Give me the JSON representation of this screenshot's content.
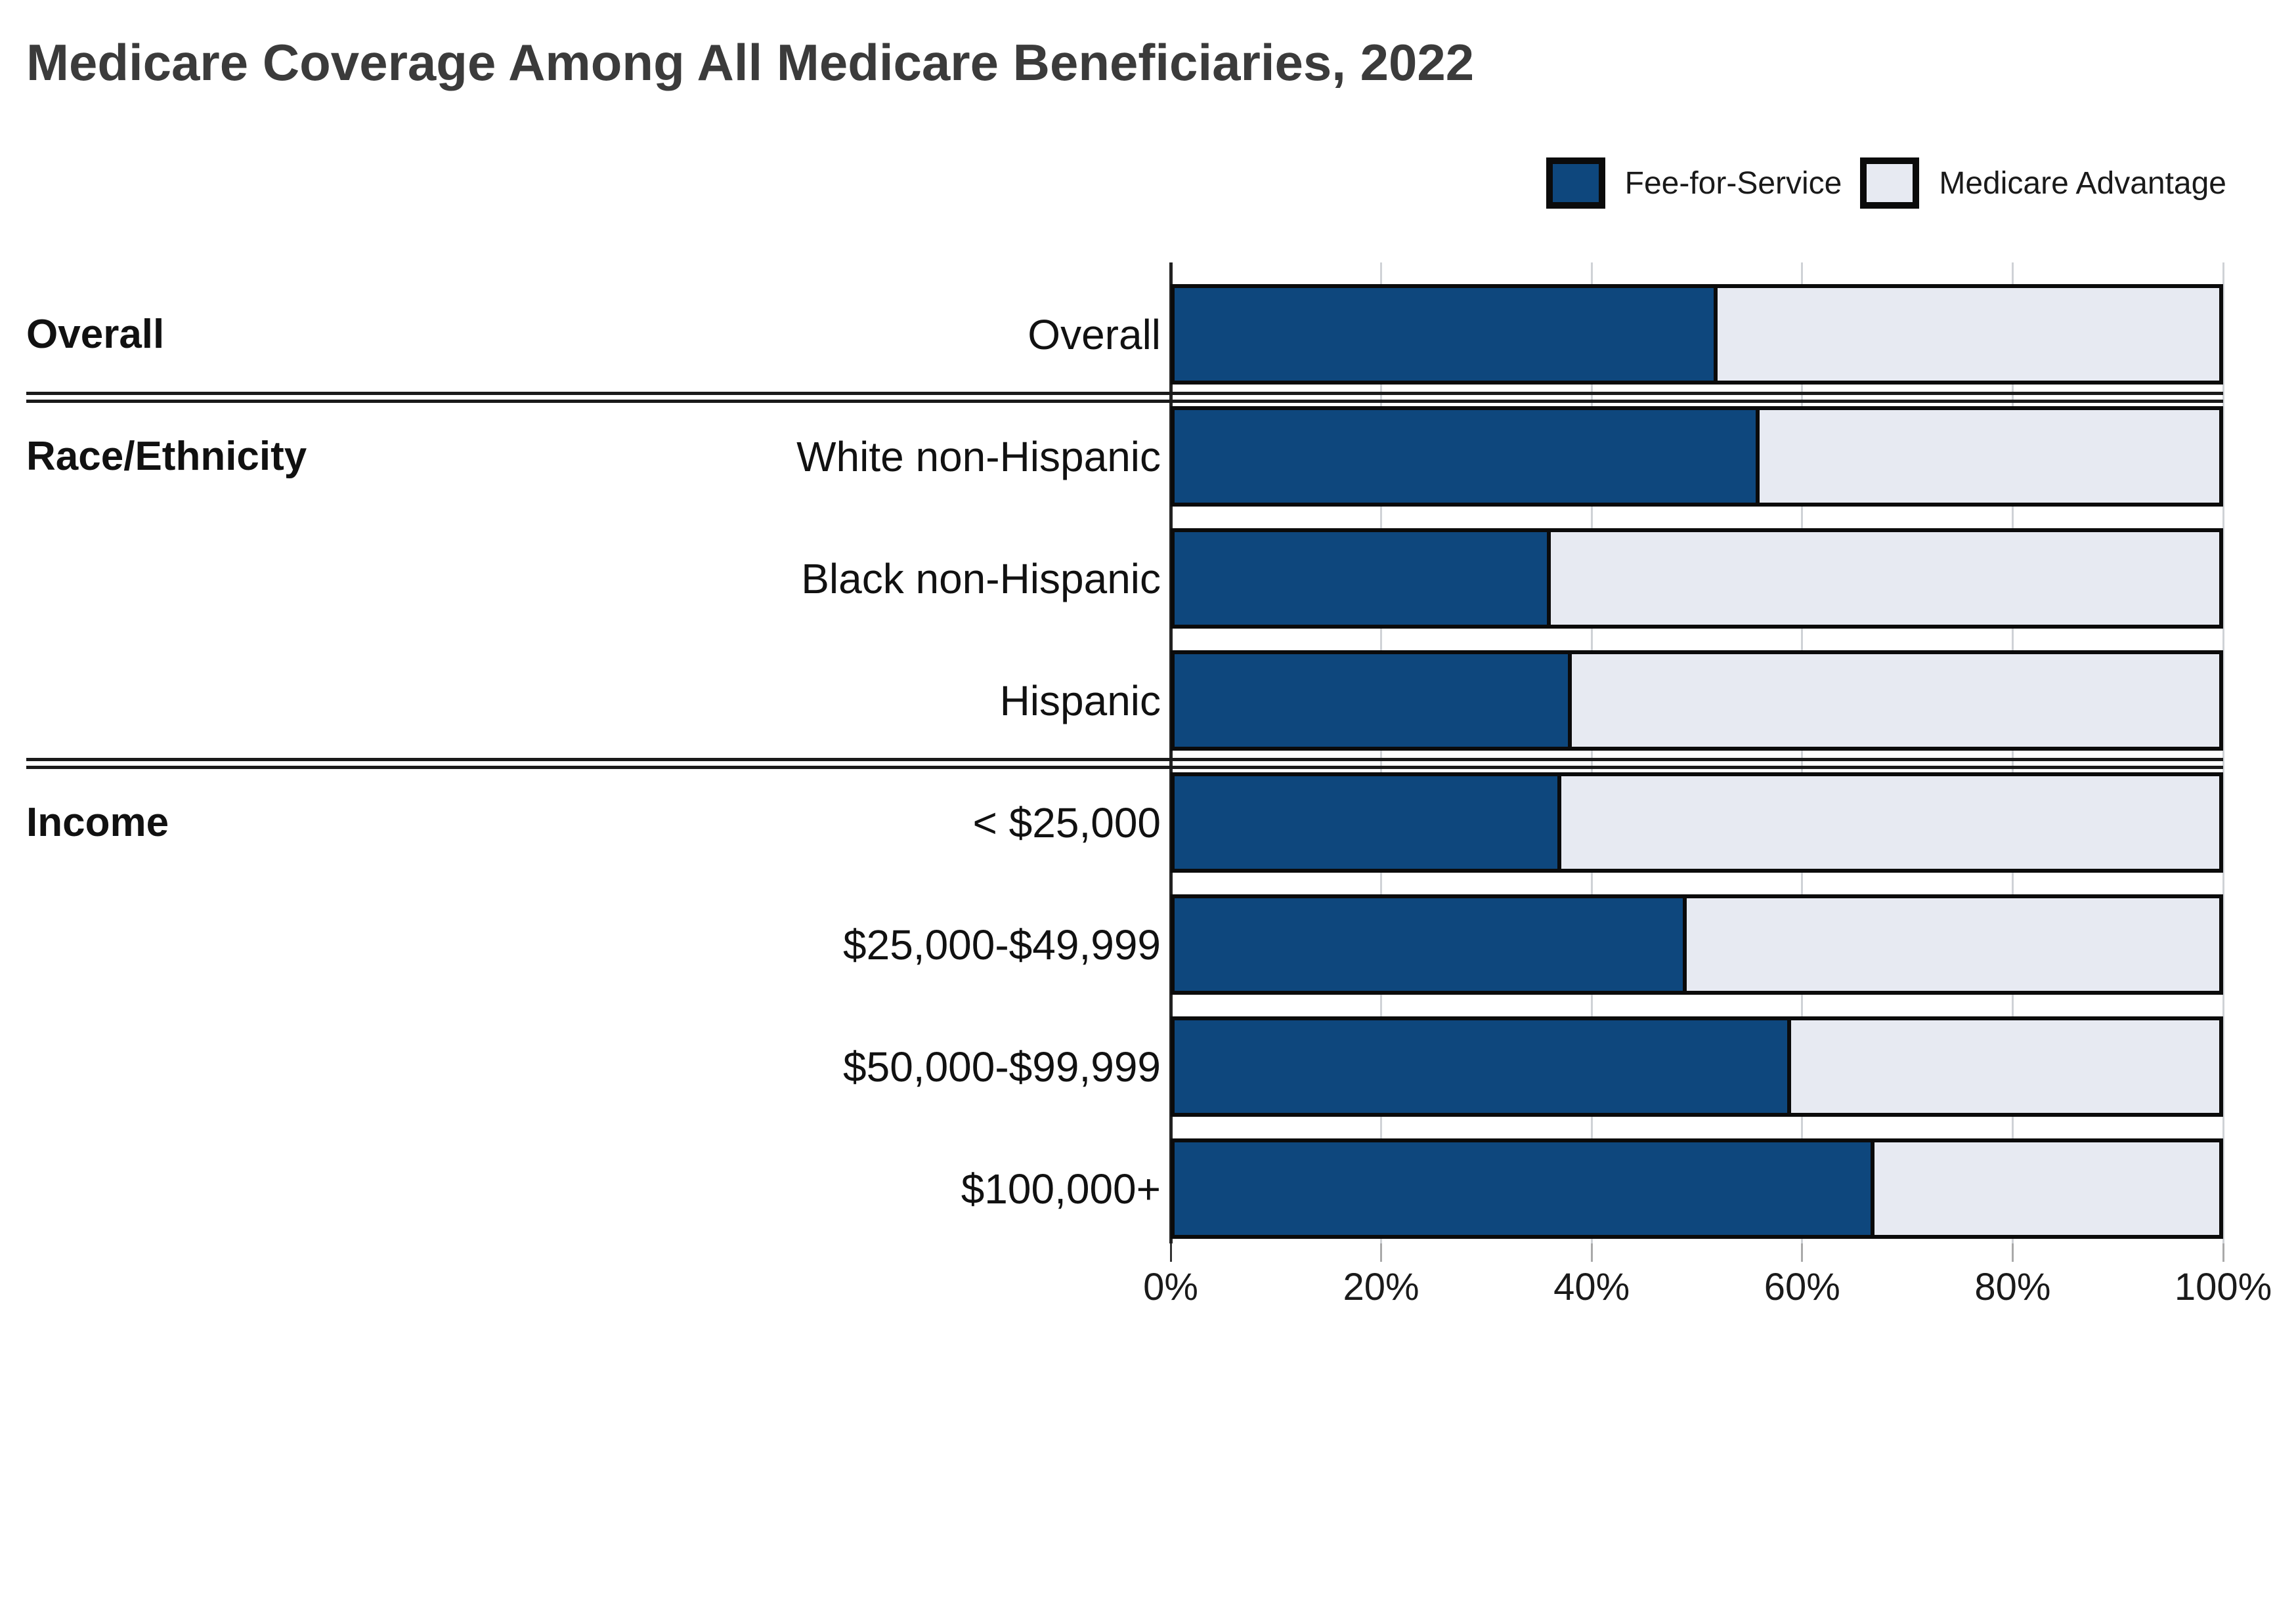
{
  "chart_data": {
    "type": "bar",
    "subtype": "horizontal-stacked-100-percent",
    "title": "Medicare Coverage Among All Medicare Beneficiaries, 2022",
    "series": [
      "Fee-for-Service",
      "Medicare Advantage"
    ],
    "colors": {
      "fee_for_service": "#0E477D",
      "medicare_advantage": "#E7EAF2",
      "bar_border": "#0B0B0B",
      "gridline": "#CFD2D6"
    },
    "legend_position": "top-right",
    "x_axis": {
      "min": 0,
      "max": 100,
      "unit": "%",
      "tick_labels": [
        "0%",
        "20%",
        "40%",
        "60%",
        "80%",
        "100%"
      ],
      "gridlines": true
    },
    "groups": [
      {
        "label": "Overall",
        "rows": [
          {
            "label": "Overall",
            "values": [
              52,
              48
            ]
          }
        ]
      },
      {
        "label": "Race/Ethnicity",
        "rows": [
          {
            "label": "White non-Hispanic",
            "values": [
              56,
              44
            ]
          },
          {
            "label": "Black non-Hispanic",
            "values": [
              36,
              64
            ]
          },
          {
            "label": "Hispanic",
            "values": [
              38,
              62
            ]
          }
        ]
      },
      {
        "label": "Income",
        "rows": [
          {
            "label": "< $25,000",
            "values": [
              37,
              63
            ]
          },
          {
            "label": "$25,000-$49,999",
            "values": [
              49,
              51
            ]
          },
          {
            "label": "$50,000-$99,999",
            "values": [
              59,
              41
            ]
          },
          {
            "label": "$100,000+",
            "values": [
              67,
              33
            ]
          }
        ]
      }
    ],
    "legend": {
      "items": [
        {
          "label": "Fee-for-Service",
          "color": "#0E477D"
        },
        {
          "label": "Medicare Advantage",
          "color": "#E7EAF2"
        }
      ]
    }
  }
}
